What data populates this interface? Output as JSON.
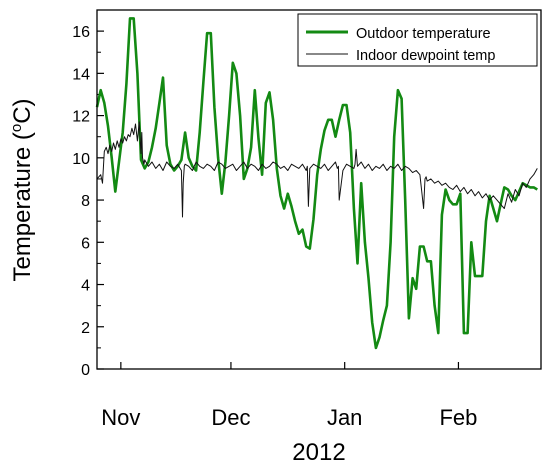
{
  "chart_data": {
    "type": "line",
    "title": "",
    "xlabel": "2012",
    "ylabel_main": "Temperature (",
    "ylabel_sup": "o",
    "ylabel_unit": "C)",
    "ylim": [
      0,
      17
    ],
    "yticks": [
      0,
      2,
      4,
      6,
      8,
      10,
      12,
      14,
      16
    ],
    "xlim": [
      0,
      121
    ],
    "xticks": [
      {
        "label": "Nov",
        "x": 6.5
      },
      {
        "label": "Dec",
        "x": 36.5
      },
      {
        "label": "Jan",
        "x": 67.5
      },
      {
        "label": "Feb",
        "x": 98.5
      }
    ],
    "legend_position": "top-right",
    "series": [
      {
        "name": "Outdoor temperature",
        "color": "#138a13",
        "x": [
          0,
          1,
          2,
          3,
          4,
          5,
          6,
          7,
          8,
          9,
          10,
          11,
          12,
          13,
          14,
          15,
          16,
          17,
          18,
          19,
          20,
          21,
          22,
          23,
          24,
          25,
          26,
          27,
          28,
          29,
          30,
          31,
          32,
          33,
          34,
          35,
          36,
          37,
          38,
          39,
          40,
          41,
          42,
          43,
          44,
          45,
          46,
          47,
          48,
          49,
          50,
          51,
          52,
          53,
          54,
          55,
          56,
          57,
          58,
          59,
          60,
          61,
          62,
          63,
          64,
          65,
          66,
          67,
          68,
          69,
          70,
          71,
          72,
          73,
          74,
          75,
          76,
          77,
          78,
          79,
          80,
          81,
          82,
          83,
          84,
          85,
          86,
          87,
          88,
          89,
          90,
          91,
          92,
          93,
          94,
          95,
          96,
          97,
          98,
          99,
          100,
          101,
          102,
          103,
          104,
          105,
          106,
          107,
          108,
          109,
          110,
          111,
          112,
          113,
          114,
          115,
          116,
          117,
          118,
          119,
          120
        ],
        "values": [
          12.4,
          13.2,
          12.6,
          11.5,
          10.0,
          8.4,
          9.8,
          11.2,
          13.5,
          16.6,
          16.6,
          14.0,
          9.9,
          9.5,
          9.8,
          10.5,
          11.4,
          12.6,
          13.8,
          10.6,
          9.7,
          9.4,
          9.6,
          9.9,
          11.2,
          10.0,
          9.6,
          9.4,
          11.2,
          13.6,
          15.9,
          15.9,
          12.4,
          10.0,
          8.3,
          9.8,
          12.0,
          14.5,
          14.0,
          12.0,
          9.0,
          9.5,
          10.5,
          13.2,
          10.9,
          9.2,
          12.6,
          13.1,
          11.8,
          9.5,
          8.2,
          7.6,
          8.3,
          7.7,
          7.0,
          6.4,
          6.6,
          5.8,
          5.7,
          7.1,
          9.2,
          10.4,
          11.3,
          11.8,
          11.8,
          11.0,
          11.8,
          12.5,
          12.5,
          11.2,
          7.6,
          5.0,
          8.8,
          6.0,
          4.3,
          2.2,
          1.0,
          1.5,
          2.3,
          3.0,
          6.0,
          11.0,
          13.2,
          12.8,
          8.0,
          2.4,
          4.3,
          3.8,
          5.8,
          5.8,
          5.1,
          5.1,
          3.0,
          1.7,
          7.3,
          8.5,
          8.0,
          7.8,
          7.8,
          8.3,
          1.7,
          1.7,
          6.0,
          4.4,
          4.4,
          4.4,
          7.0,
          8.2,
          7.6,
          7.0,
          7.8,
          8.6,
          8.5,
          8.2,
          8.0,
          8.4,
          8.8,
          8.7,
          8.6,
          8.6,
          8.5
        ]
      },
      {
        "name": "Indoor dewpoint temp",
        "color": "#111111",
        "x": [
          0,
          1,
          1.5,
          2,
          2.5,
          3,
          3.5,
          4,
          4.5,
          5,
          5.5,
          6,
          6.5,
          7,
          7.5,
          8,
          8.5,
          9,
          9.5,
          10,
          10.5,
          11,
          11.5,
          12,
          12.2,
          12.4,
          12.8,
          13,
          14,
          15,
          16,
          17,
          18,
          19,
          20,
          21,
          22,
          23,
          23.3,
          23.5,
          23.8,
          24,
          25,
          26,
          27,
          28,
          29,
          30,
          31,
          32,
          33,
          34,
          35,
          36,
          37,
          38,
          39,
          40,
          41,
          42,
          43,
          44,
          45,
          46,
          47,
          48,
          49,
          50,
          51,
          52,
          53,
          54,
          55,
          56,
          57,
          57.3,
          57.6,
          58,
          59,
          60,
          61,
          62,
          63,
          64,
          65,
          65.5,
          65.8,
          66,
          67,
          68,
          69,
          70,
          70.3,
          70.6,
          71,
          72,
          73,
          74,
          75,
          76,
          77,
          78,
          79,
          80,
          81,
          82,
          83,
          84,
          85,
          86,
          87,
          88,
          89,
          89.4,
          89.7,
          90,
          91,
          92,
          93,
          94,
          95,
          96,
          97,
          98,
          99,
          100,
          101,
          102,
          103,
          104,
          105,
          106,
          107,
          108,
          109,
          110,
          111,
          112,
          113,
          114,
          115,
          116,
          117,
          118,
          119,
          120
        ],
        "values": [
          9.0,
          9.2,
          8.8,
          10.3,
          10.5,
          10.2,
          10.6,
          10.3,
          10.7,
          10.4,
          10.8,
          10.5,
          10.9,
          10.7,
          11.0,
          10.8,
          11.1,
          11.0,
          11.4,
          11.1,
          11.6,
          10.8,
          11.7,
          10.2,
          11.2,
          10.0,
          9.7,
          9.9,
          9.6,
          9.8,
          9.5,
          9.7,
          9.4,
          9.8,
          9.6,
          9.5,
          9.7,
          9.4,
          7.2,
          8.8,
          9.6,
          9.7,
          9.6,
          9.4,
          9.8,
          9.6,
          9.5,
          9.7,
          9.6,
          9.4,
          9.8,
          9.7,
          9.5,
          9.6,
          9.7,
          9.4,
          9.6,
          9.8,
          9.5,
          9.7,
          9.6,
          9.4,
          9.7,
          9.5,
          9.6,
          9.8,
          9.7,
          9.5,
          9.6,
          9.4,
          9.7,
          9.6,
          9.5,
          9.7,
          9.4,
          9.6,
          7.7,
          9.5,
          9.7,
          9.6,
          9.5,
          9.7,
          9.4,
          9.6,
          9.8,
          9.5,
          9.6,
          8.0,
          9.4,
          9.7,
          9.6,
          9.5,
          9.7,
          10.4,
          9.6,
          9.8,
          9.5,
          9.7,
          9.4,
          9.6,
          9.5,
          9.7,
          9.4,
          9.6,
          9.5,
          9.7,
          9.4,
          9.6,
          9.5,
          9.3,
          9.4,
          9.2,
          7.6,
          9.0,
          9.1,
          8.9,
          9.0,
          8.8,
          8.9,
          8.7,
          8.8,
          8.6,
          8.5,
          8.7,
          8.4,
          8.6,
          8.3,
          8.5,
          8.2,
          8.4,
          8.1,
          8.3,
          8.0,
          8.2,
          8.0,
          7.8,
          7.6,
          8.3,
          7.9,
          8.5,
          8.2,
          8.8,
          8.6,
          9.0,
          9.2,
          9.5
        ]
      }
    ]
  }
}
